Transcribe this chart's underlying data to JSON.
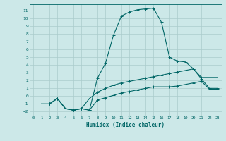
{
  "xlabel": "Humidex (Indice chaleur)",
  "bg_color": "#cce8e8",
  "grid_color": "#aacccc",
  "line_color": "#006666",
  "xlim": [
    -0.5,
    23.5
  ],
  "ylim": [
    -2.5,
    11.8
  ],
  "xticks": [
    0,
    1,
    2,
    3,
    4,
    5,
    6,
    7,
    8,
    9,
    10,
    11,
    12,
    13,
    14,
    15,
    16,
    17,
    18,
    19,
    20,
    21,
    22,
    23
  ],
  "yticks": [
    -2,
    -1,
    0,
    1,
    2,
    3,
    4,
    5,
    6,
    7,
    8,
    9,
    10,
    11
  ],
  "line1_x": [
    1,
    2,
    3,
    4,
    5,
    6,
    7,
    8,
    9,
    10,
    11,
    12,
    13,
    14,
    15,
    16,
    17,
    18,
    19,
    20,
    21,
    22,
    23
  ],
  "line1_y": [
    -1.0,
    -1.0,
    -0.3,
    -1.6,
    -1.8,
    -1.6,
    -1.8,
    2.3,
    4.2,
    7.8,
    10.3,
    10.8,
    11.1,
    11.2,
    11.3,
    9.5,
    5.0,
    4.5,
    4.4,
    3.5,
    2.4,
    2.4,
    2.4
  ],
  "line2_x": [
    1,
    2,
    3,
    4,
    5,
    6,
    7,
    8,
    9,
    10,
    11,
    12,
    13,
    14,
    15,
    16,
    17,
    18,
    19,
    20,
    21,
    22,
    23
  ],
  "line2_y": [
    -1.0,
    -1.0,
    -0.3,
    -1.6,
    -1.8,
    -1.6,
    -0.3,
    0.5,
    1.0,
    1.4,
    1.7,
    1.9,
    2.1,
    2.3,
    2.5,
    2.7,
    2.9,
    3.1,
    3.3,
    3.5,
    2.2,
    1.0,
    1.0
  ],
  "line3_x": [
    1,
    2,
    3,
    4,
    5,
    6,
    7,
    8,
    9,
    10,
    11,
    12,
    13,
    14,
    15,
    16,
    17,
    18,
    19,
    20,
    21,
    22,
    23
  ],
  "line3_y": [
    -1.0,
    -1.0,
    -0.3,
    -1.6,
    -1.8,
    -1.6,
    -1.8,
    -0.5,
    -0.2,
    0.1,
    0.4,
    0.6,
    0.8,
    1.0,
    1.2,
    1.2,
    1.2,
    1.3,
    1.5,
    1.7,
    1.9,
    0.9,
    0.9
  ]
}
